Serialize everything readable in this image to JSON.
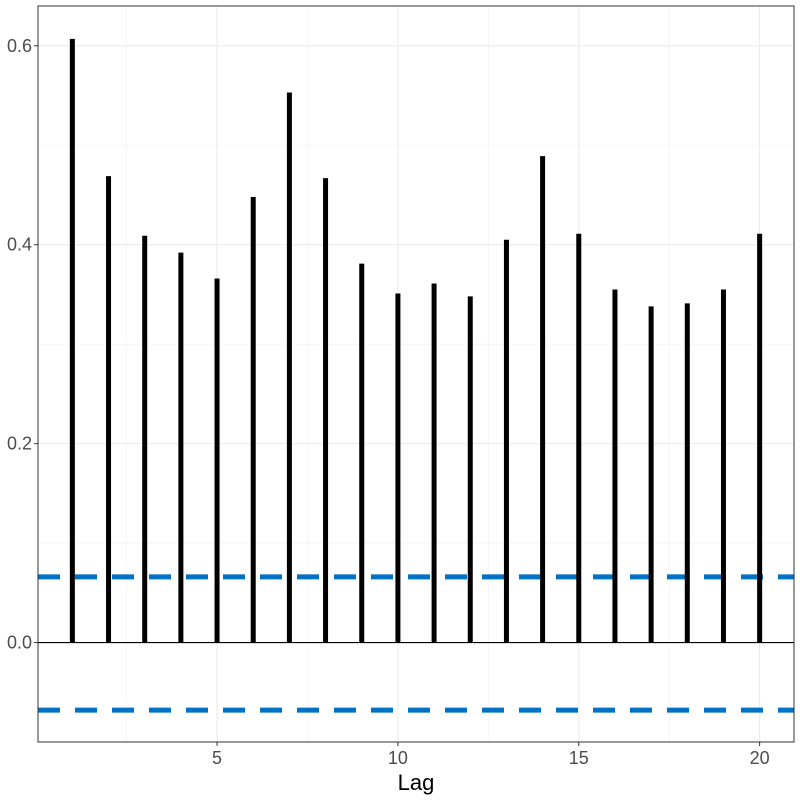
{
  "chart_data": {
    "type": "bar",
    "subtype": "acf-lollipop",
    "title": "",
    "xlabel": "Lag",
    "ylabel": "",
    "x": [
      1,
      2,
      3,
      4,
      5,
      6,
      7,
      8,
      9,
      10,
      11,
      12,
      13,
      14,
      15,
      16,
      17,
      18,
      19,
      20
    ],
    "values": [
      0.607,
      0.469,
      0.409,
      0.392,
      0.366,
      0.448,
      0.553,
      0.467,
      0.381,
      0.351,
      0.361,
      0.348,
      0.405,
      0.489,
      0.411,
      0.355,
      0.338,
      0.341,
      0.355,
      0.411
    ],
    "xlim": [
      0.05,
      20.95
    ],
    "ylim": [
      -0.1,
      0.64
    ],
    "x_ticks": [
      5,
      10,
      15,
      20
    ],
    "x_tick_labels": [
      "5",
      "10",
      "15",
      "20"
    ],
    "y_ticks": [
      0.0,
      0.2,
      0.4,
      0.6
    ],
    "y_tick_labels": [
      "0.0",
      "0.2",
      "0.4",
      "0.6"
    ],
    "reference_lines": [
      {
        "kind": "zero",
        "y": 0.0,
        "color": "#000000",
        "style": "solid"
      },
      {
        "kind": "confidence-upper",
        "y": 0.066,
        "color": "#0072c6",
        "style": "dashed"
      },
      {
        "kind": "confidence-lower",
        "y": -0.068,
        "color": "#0072c6",
        "style": "dashed"
      }
    ],
    "bar_color": "#000000",
    "grid": true,
    "legend": "none"
  }
}
